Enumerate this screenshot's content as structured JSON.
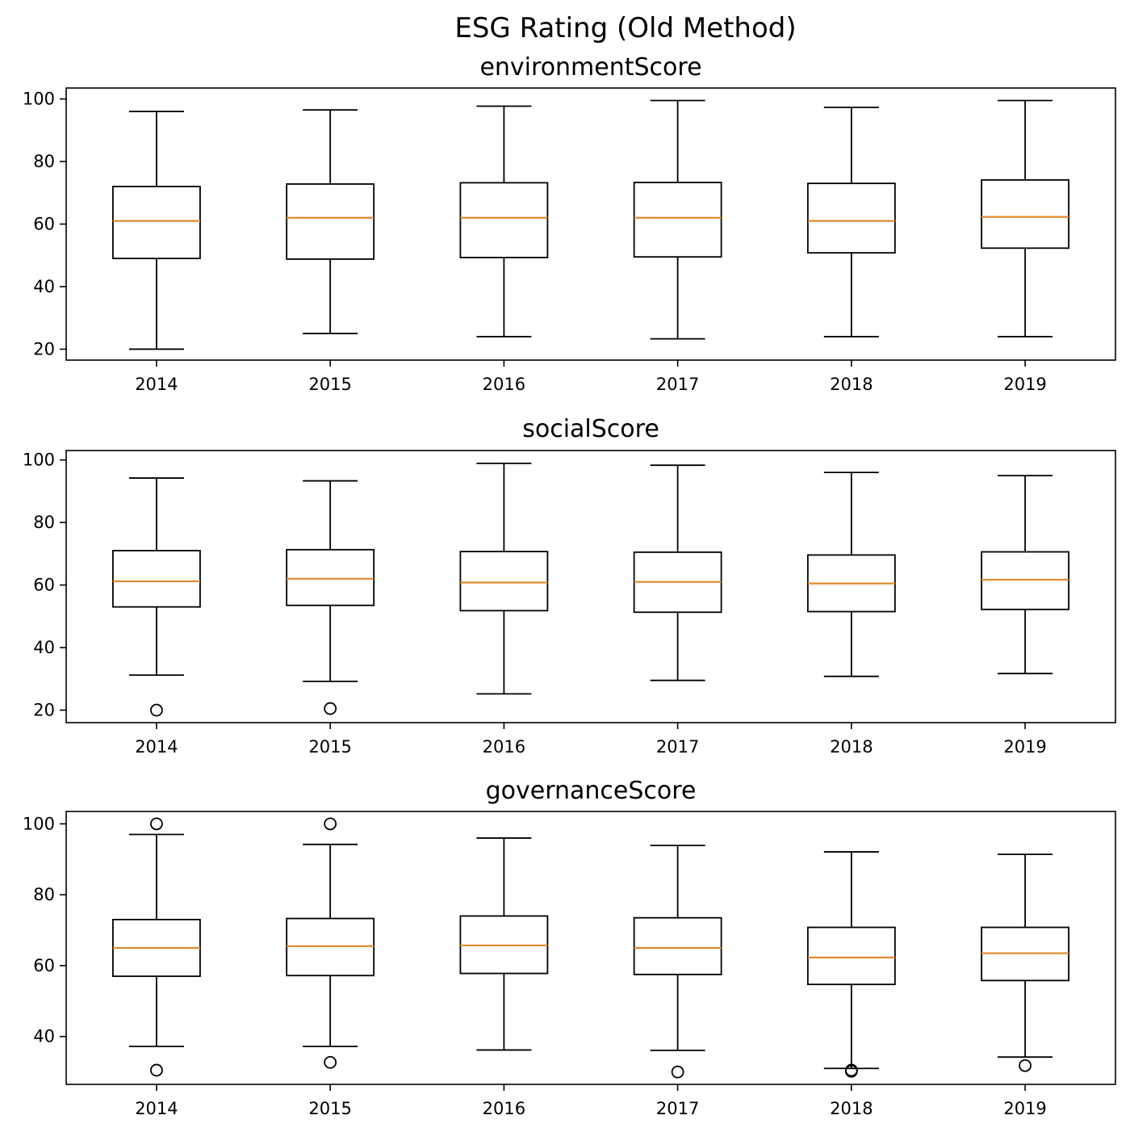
{
  "figure": {
    "title": "ESG Rating (Old Method)",
    "median_color": "#e08a2c",
    "line_color": "#000000"
  },
  "chart_data": [
    {
      "type": "box",
      "title": "environmentScore",
      "xlabel": "",
      "ylabel": "",
      "categories": [
        "2014",
        "2015",
        "2016",
        "2017",
        "2018",
        "2019"
      ],
      "ylim": [
        16.5,
        103.5
      ],
      "yticks": [
        20,
        40,
        60,
        80,
        100
      ],
      "grid": false,
      "boxes": [
        {
          "whislo": 20,
          "q1": 49,
          "med": 61,
          "q3": 72,
          "whishi": 96,
          "fliers": []
        },
        {
          "whislo": 25,
          "q1": 48.8,
          "med": 62,
          "q3": 72.8,
          "whishi": 96.5,
          "fliers": []
        },
        {
          "whislo": 24,
          "q1": 49.3,
          "med": 62,
          "q3": 73.2,
          "whishi": 97.7,
          "fliers": []
        },
        {
          "whislo": 23.3,
          "q1": 49.5,
          "med": 62,
          "q3": 73.3,
          "whishi": 99.5,
          "fliers": []
        },
        {
          "whislo": 24,
          "q1": 50.8,
          "med": 61,
          "q3": 73,
          "whishi": 97.3,
          "fliers": []
        },
        {
          "whislo": 24,
          "q1": 52.3,
          "med": 62.3,
          "q3": 74.1,
          "whishi": 99.5,
          "fliers": []
        }
      ]
    },
    {
      "type": "box",
      "title": "socialScore",
      "xlabel": "",
      "ylabel": "",
      "categories": [
        "2014",
        "2015",
        "2016",
        "2017",
        "2018",
        "2019"
      ],
      "ylim": [
        16,
        103
      ],
      "yticks": [
        20,
        40,
        60,
        80,
        100
      ],
      "grid": false,
      "boxes": [
        {
          "whislo": 31.2,
          "q1": 53,
          "med": 61.2,
          "q3": 71,
          "whishi": 94.2,
          "fliers": [
            20
          ]
        },
        {
          "whislo": 29.2,
          "q1": 53.5,
          "med": 62,
          "q3": 71.3,
          "whishi": 93.3,
          "fliers": [
            20.5
          ]
        },
        {
          "whislo": 25.2,
          "q1": 51.8,
          "med": 60.8,
          "q3": 70.7,
          "whishi": 98.9,
          "fliers": []
        },
        {
          "whislo": 29.5,
          "q1": 51.3,
          "med": 61,
          "q3": 70.5,
          "whishi": 98.3,
          "fliers": []
        },
        {
          "whislo": 30.8,
          "q1": 51.5,
          "med": 60.5,
          "q3": 69.6,
          "whishi": 96,
          "fliers": []
        },
        {
          "whislo": 31.7,
          "q1": 52.2,
          "med": 61.7,
          "q3": 70.6,
          "whishi": 95,
          "fliers": []
        }
      ]
    },
    {
      "type": "box",
      "title": "governanceScore",
      "xlabel": "",
      "ylabel": "",
      "categories": [
        "2014",
        "2015",
        "2016",
        "2017",
        "2018",
        "2019"
      ],
      "ylim": [
        26.5,
        103.5
      ],
      "yticks": [
        40,
        60,
        80,
        100
      ],
      "grid": false,
      "boxes": [
        {
          "whislo": 37.2,
          "q1": 57,
          "med": 65,
          "q3": 73,
          "whishi": 97,
          "fliers": [
            100,
            30.5
          ]
        },
        {
          "whislo": 37.2,
          "q1": 57.2,
          "med": 65.5,
          "q3": 73.3,
          "whishi": 94.2,
          "fliers": [
            100,
            32.7
          ]
        },
        {
          "whislo": 36.2,
          "q1": 57.8,
          "med": 65.7,
          "q3": 74,
          "whishi": 96,
          "fliers": []
        },
        {
          "whislo": 36.1,
          "q1": 57.5,
          "med": 65,
          "q3": 73.5,
          "whishi": 93.9,
          "fliers": [
            30
          ]
        },
        {
          "whislo": 31,
          "q1": 54.7,
          "med": 62.3,
          "q3": 70.8,
          "whishi": 92.1,
          "fliers": [
            30.2,
            30.5
          ]
        },
        {
          "whislo": 34.2,
          "q1": 55.8,
          "med": 63.5,
          "q3": 70.8,
          "whishi": 91.4,
          "fliers": [
            31.8
          ]
        }
      ]
    }
  ]
}
